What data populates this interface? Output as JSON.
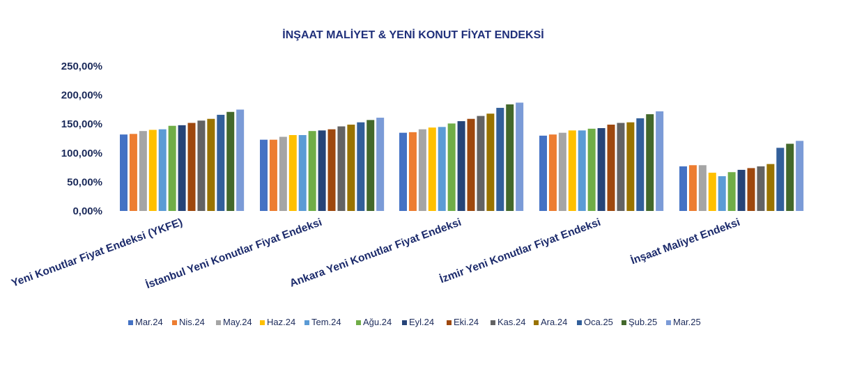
{
  "chart_data": {
    "type": "bar",
    "title": "İNŞAAT MALİYET & YENİ KONUT FİYAT ENDEKSİ",
    "xlabel": "",
    "ylabel": "",
    "ylim": [
      0,
      250
    ],
    "y_ticks": [
      0,
      50,
      100,
      150,
      200,
      250
    ],
    "y_tick_labels": [
      "0,00%",
      "50,00%",
      "100,00%",
      "150,00%",
      "200,00%",
      "250,00%"
    ],
    "grid": false,
    "legend_position": "bottom",
    "categories": [
      "Yeni Konutlar Fiyat Endeksi (YKFE)",
      "İstanbul Yeni Konutlar Fiyat Endeksi",
      "Ankara Yeni Konutlar Fiyat Endeksi",
      "İzmir Yeni Konutlar Fiyat Endeksi",
      "İnşaat Maliyet Endeksi"
    ],
    "series": [
      {
        "name": "Mar.24",
        "color": "#4472c4",
        "values": [
          132,
          123,
          135,
          130,
          77
        ]
      },
      {
        "name": "Nis.24",
        "color": "#ed7d31",
        "values": [
          133,
          123,
          136,
          132,
          79
        ]
      },
      {
        "name": "May.24",
        "color": "#a5a5a5",
        "values": [
          138,
          128,
          141,
          135,
          79
        ]
      },
      {
        "name": "Haz.24",
        "color": "#ffc000",
        "values": [
          140,
          131,
          144,
          139,
          66
        ]
      },
      {
        "name": "Tem.24",
        "color": "#5b9bd5",
        "values": [
          141,
          131,
          145,
          139,
          60
        ]
      },
      {
        "name": "Ağu.24",
        "color": "#70ad47",
        "values": [
          147,
          138,
          151,
          142,
          67
        ]
      },
      {
        "name": "Eyl.24",
        "color": "#264478",
        "values": [
          148,
          139,
          155,
          143,
          71
        ]
      },
      {
        "name": "Eki.24",
        "color": "#9e480e",
        "values": [
          152,
          141,
          159,
          149,
          74
        ]
      },
      {
        "name": "Kas.24",
        "color": "#636363",
        "values": [
          156,
          146,
          164,
          152,
          77
        ]
      },
      {
        "name": "Ara.24",
        "color": "#997300",
        "values": [
          159,
          149,
          168,
          153,
          81
        ]
      },
      {
        "name": "Oca.25",
        "color": "#325f9a",
        "values": [
          166,
          153,
          178,
          160,
          109
        ]
      },
      {
        "name": "Şub.25",
        "color": "#43682b",
        "values": [
          171,
          157,
          184,
          167,
          116
        ]
      },
      {
        "name": "Mar.25",
        "color": "#7b9bd7",
        "values": [
          175,
          161,
          187,
          172,
          121
        ]
      }
    ]
  }
}
